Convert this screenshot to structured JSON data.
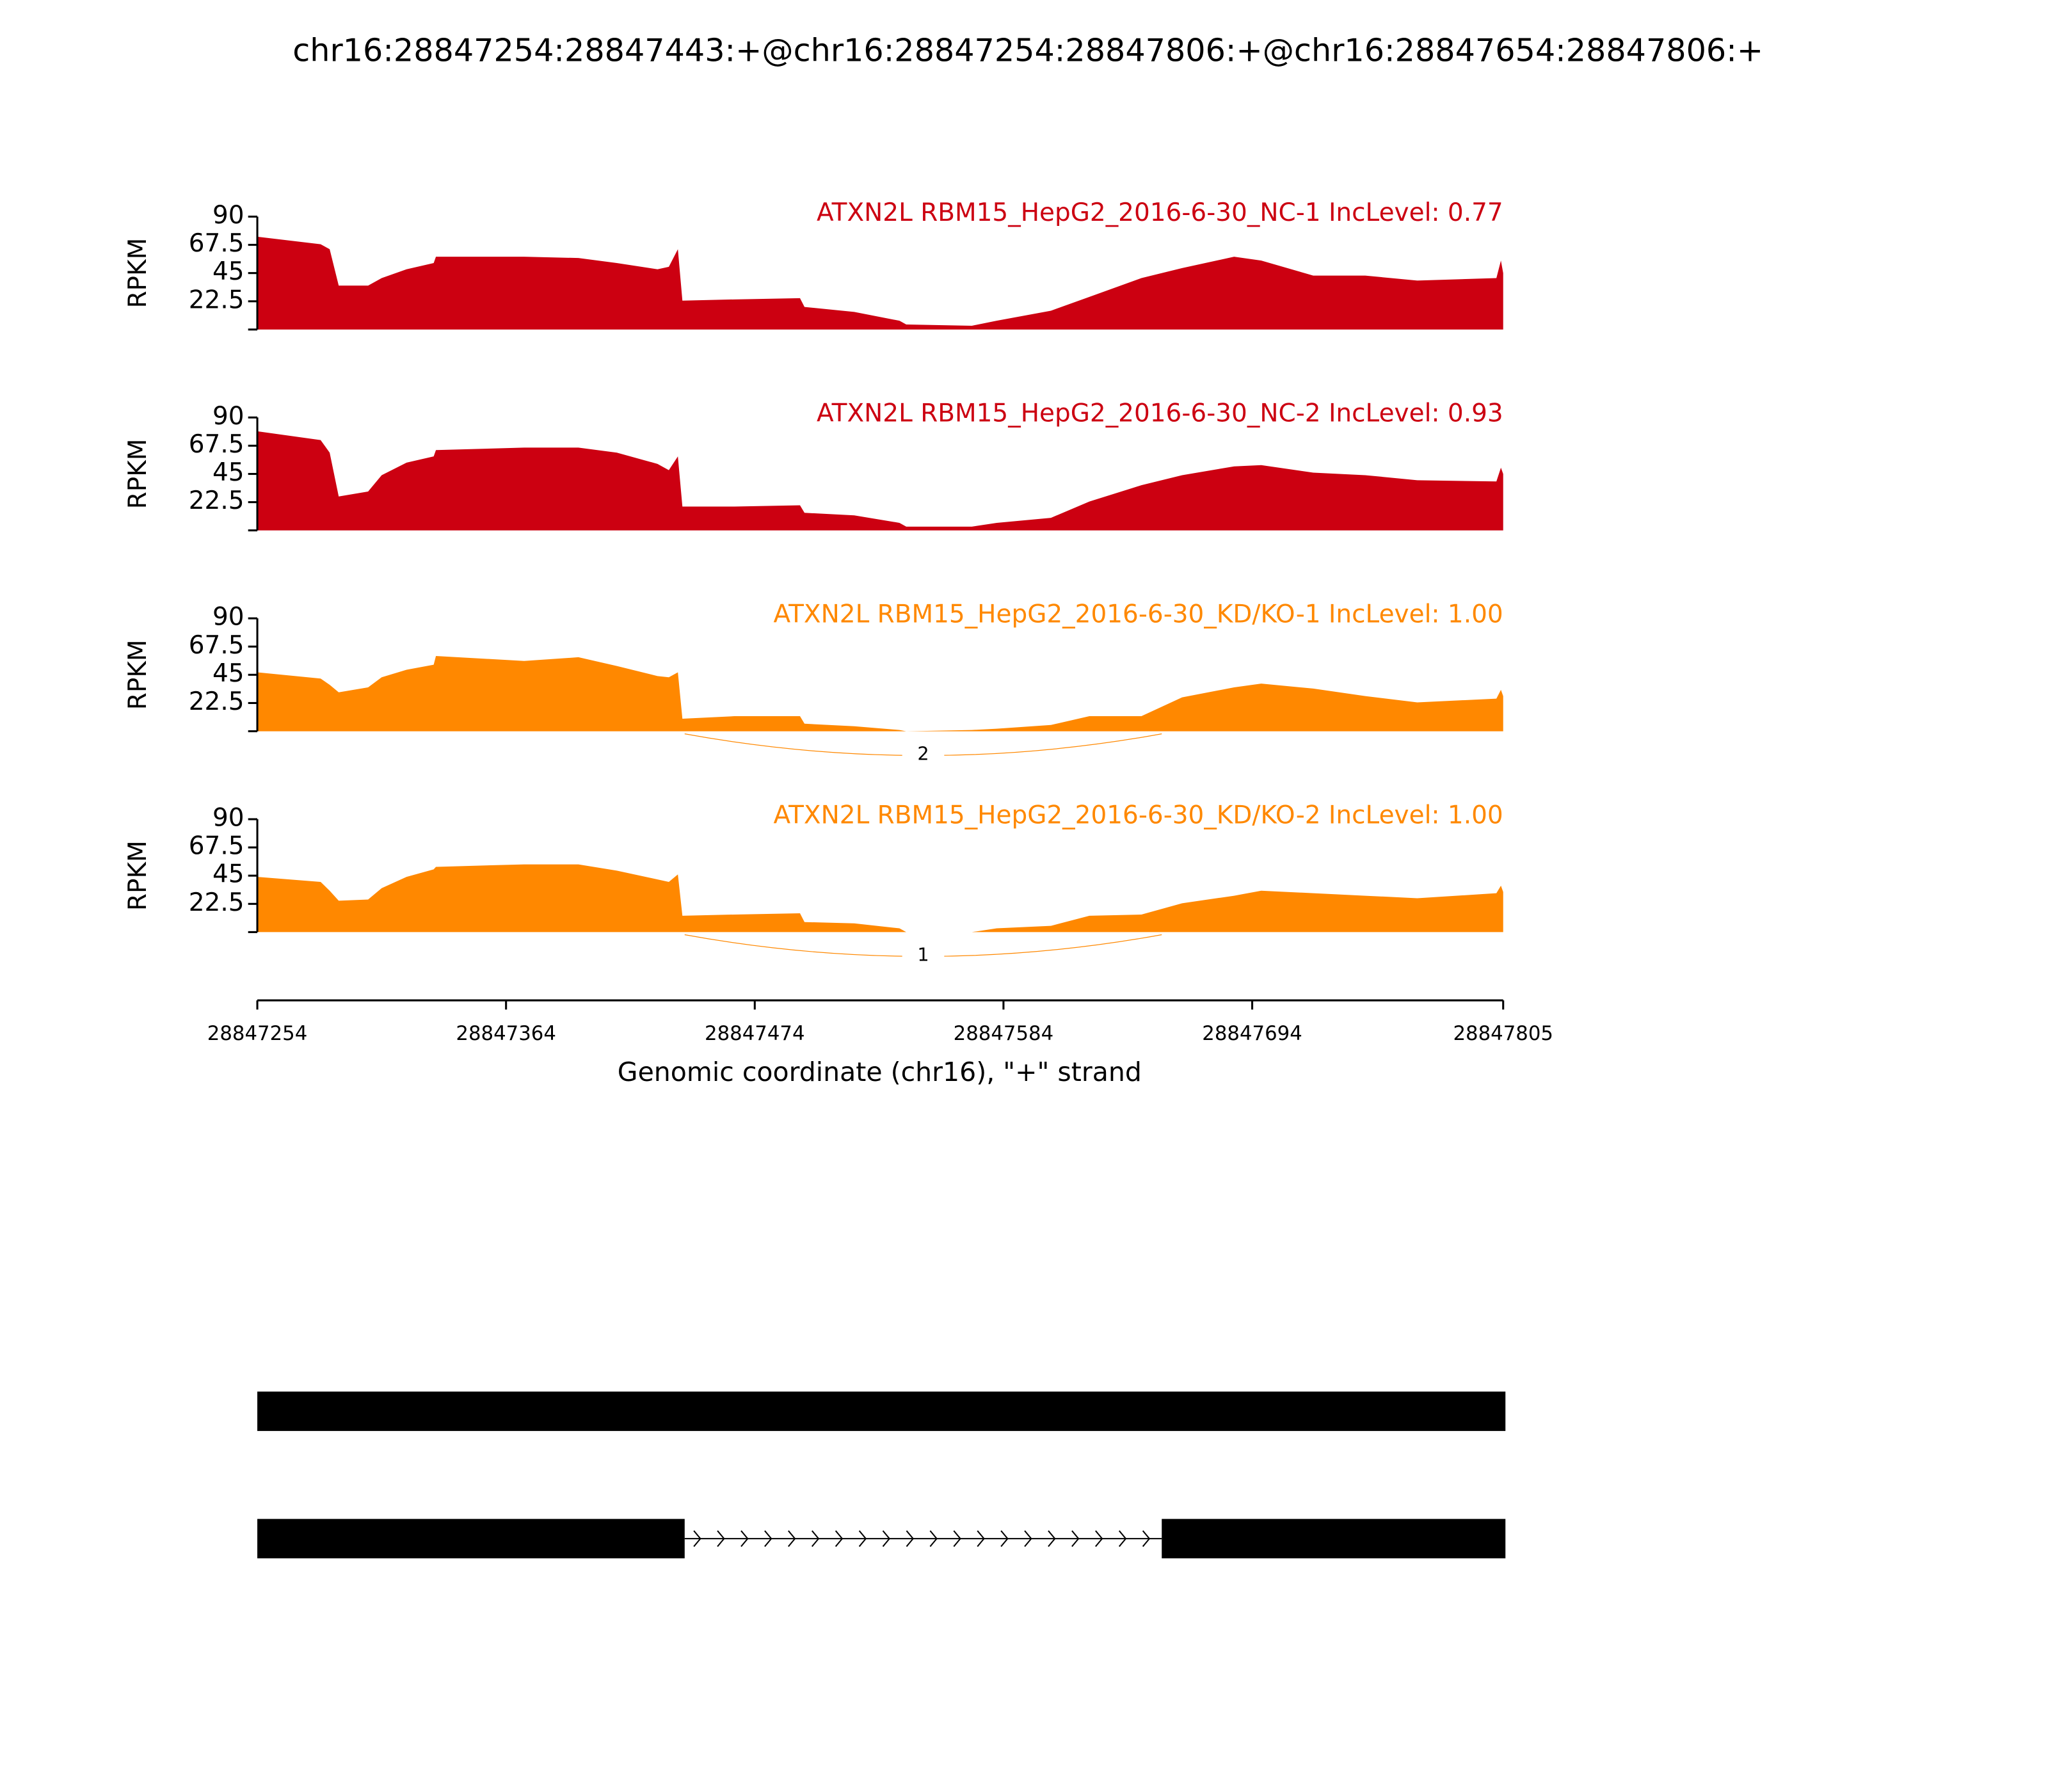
{
  "chart_data": {
    "type": "sashimi",
    "title": "chr16:28847254:28847443:+@chr16:28847254:28847806:+@chr16:28847654:28847806:+",
    "xlabel": "Genomic coordinate (chr16), \"+\" strand",
    "xlim": [
      28847254,
      28847805
    ],
    "xticks": [
      28847254,
      28847364,
      28847474,
      28847584,
      28847694,
      28847805
    ],
    "x": [
      28847254,
      28847282,
      28847286,
      28847290,
      28847303,
      28847309,
      28847320,
      28847332,
      28847333,
      28847372,
      28847396,
      28847413,
      28847431,
      28847436,
      28847440,
      28847442,
      28847465,
      28847494,
      28847496,
      28847518,
      28847538,
      28847541,
      28847570,
      28847581,
      28847605,
      28847622,
      28847645,
      28847663,
      28847686,
      28847698,
      28847721,
      28847744,
      28847767,
      28847802,
      28847804,
      28847805
    ],
    "tracks": [
      {
        "name": "ATXN2L RBM15_HepG2_2016-6-30_NC-1 IncLevel: 0.77",
        "color": "#cc0011",
        "ylabel": "RPKM",
        "ylim": [
          0,
          90
        ],
        "yticks": [
          22.5,
          45,
          67.5,
          90
        ],
        "values": [
          74,
          68,
          64,
          35,
          35,
          41,
          48,
          53,
          58,
          58,
          57,
          53,
          48,
          50,
          64,
          23,
          24,
          25,
          18,
          14,
          7,
          4,
          3,
          7,
          15,
          26,
          41,
          49,
          58,
          55,
          43,
          43,
          39,
          41,
          55,
          45
        ],
        "junctions": []
      },
      {
        "name": "ATXN2L RBM15_HepG2_2016-6-30_NC-2 IncLevel: 0.93",
        "color": "#cc0011",
        "ylabel": "RPKM",
        "ylim": [
          0,
          90
        ],
        "yticks": [
          22.5,
          45,
          67.5,
          90
        ],
        "values": [
          79,
          72,
          62,
          27,
          31,
          44,
          54,
          59,
          64,
          66,
          66,
          62,
          53,
          48,
          59,
          19,
          19,
          20,
          14,
          12,
          6,
          3,
          3,
          6,
          10,
          23,
          36,
          44,
          51,
          52,
          46,
          44,
          40,
          39,
          50,
          45
        ],
        "junctions": []
      },
      {
        "name": "ATXN2L RBM15_HepG2_2016-6-30_KD/KO-1 IncLevel: 1.00",
        "color": "#ff8800",
        "ylabel": "RPKM",
        "ylim": [
          0,
          90
        ],
        "yticks": [
          22.5,
          45,
          67.5,
          90
        ],
        "values": [
          47,
          42,
          37,
          31,
          35,
          43,
          49,
          53,
          60,
          56,
          59,
          52,
          44,
          43,
          47,
          10,
          12,
          12,
          6,
          4,
          1,
          0,
          1,
          2,
          5,
          12,
          12,
          27,
          35,
          38,
          34,
          28,
          23,
          26,
          33,
          28
        ],
        "junctions": [
          {
            "start": 28847443,
            "end": 28847654,
            "count": 2
          }
        ]
      },
      {
        "name": "ATXN2L RBM15_HepG2_2016-6-30_KD/KO-2 IncLevel: 1.00",
        "color": "#ff8800",
        "ylabel": "RPKM",
        "ylim": [
          0,
          90
        ],
        "yticks": [
          22.5,
          45,
          67.5,
          90
        ],
        "values": [
          44,
          40,
          33,
          25,
          26,
          35,
          44,
          50,
          52,
          54,
          54,
          49,
          42,
          40,
          46,
          13,
          14,
          15,
          8,
          7,
          3,
          0,
          0,
          3,
          5,
          13,
          14,
          23,
          29,
          33,
          31,
          29,
          27,
          31,
          37,
          32
        ],
        "junctions": [
          {
            "start": 28847443,
            "end": 28847654,
            "count": 1
          }
        ]
      }
    ],
    "transcripts": [
      {
        "exons": [
          [
            28847254,
            28847806
          ]
        ]
      },
      {
        "exons": [
          [
            28847254,
            28847443
          ],
          [
            28847654,
            28847806
          ]
        ]
      }
    ]
  }
}
